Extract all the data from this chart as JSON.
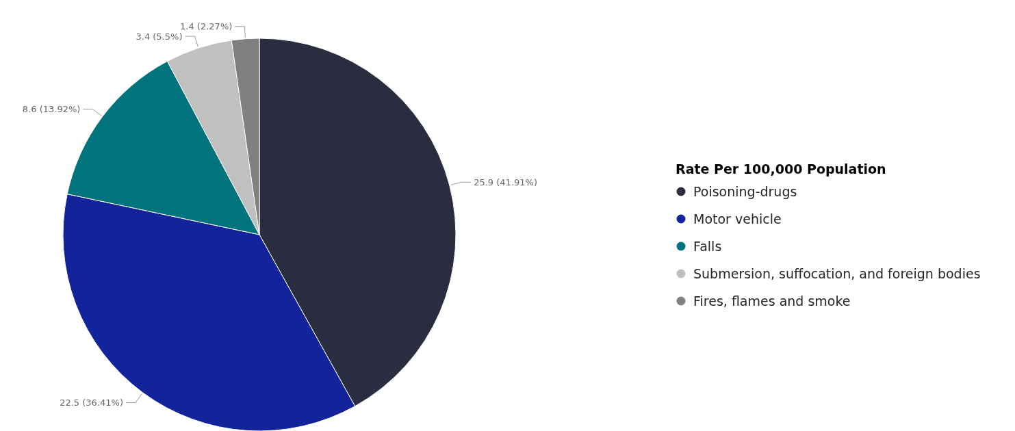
{
  "chart_data": {
    "type": "pie",
    "legend_title": "Rate Per 100,000 Population",
    "legend": "right",
    "categories": [
      "Poisoning-drugs",
      "Motor vehicle",
      "Falls",
      "Submersion, suffocation, and foreign bodies",
      "Fires, flames and smoke"
    ],
    "values": [
      25.9,
      22.5,
      8.6,
      3.4,
      1.4
    ],
    "colors": [
      "#2a2d40",
      "#13239a",
      "#00737c",
      "#c0c0c0",
      "#808080"
    ],
    "value_labels": [
      "25.9 (41.91%)",
      "22.5 (36.41%)",
      "8.6 (13.92%)",
      "3.4 (5.5%)",
      "1.4 (2.27%)"
    ]
  }
}
